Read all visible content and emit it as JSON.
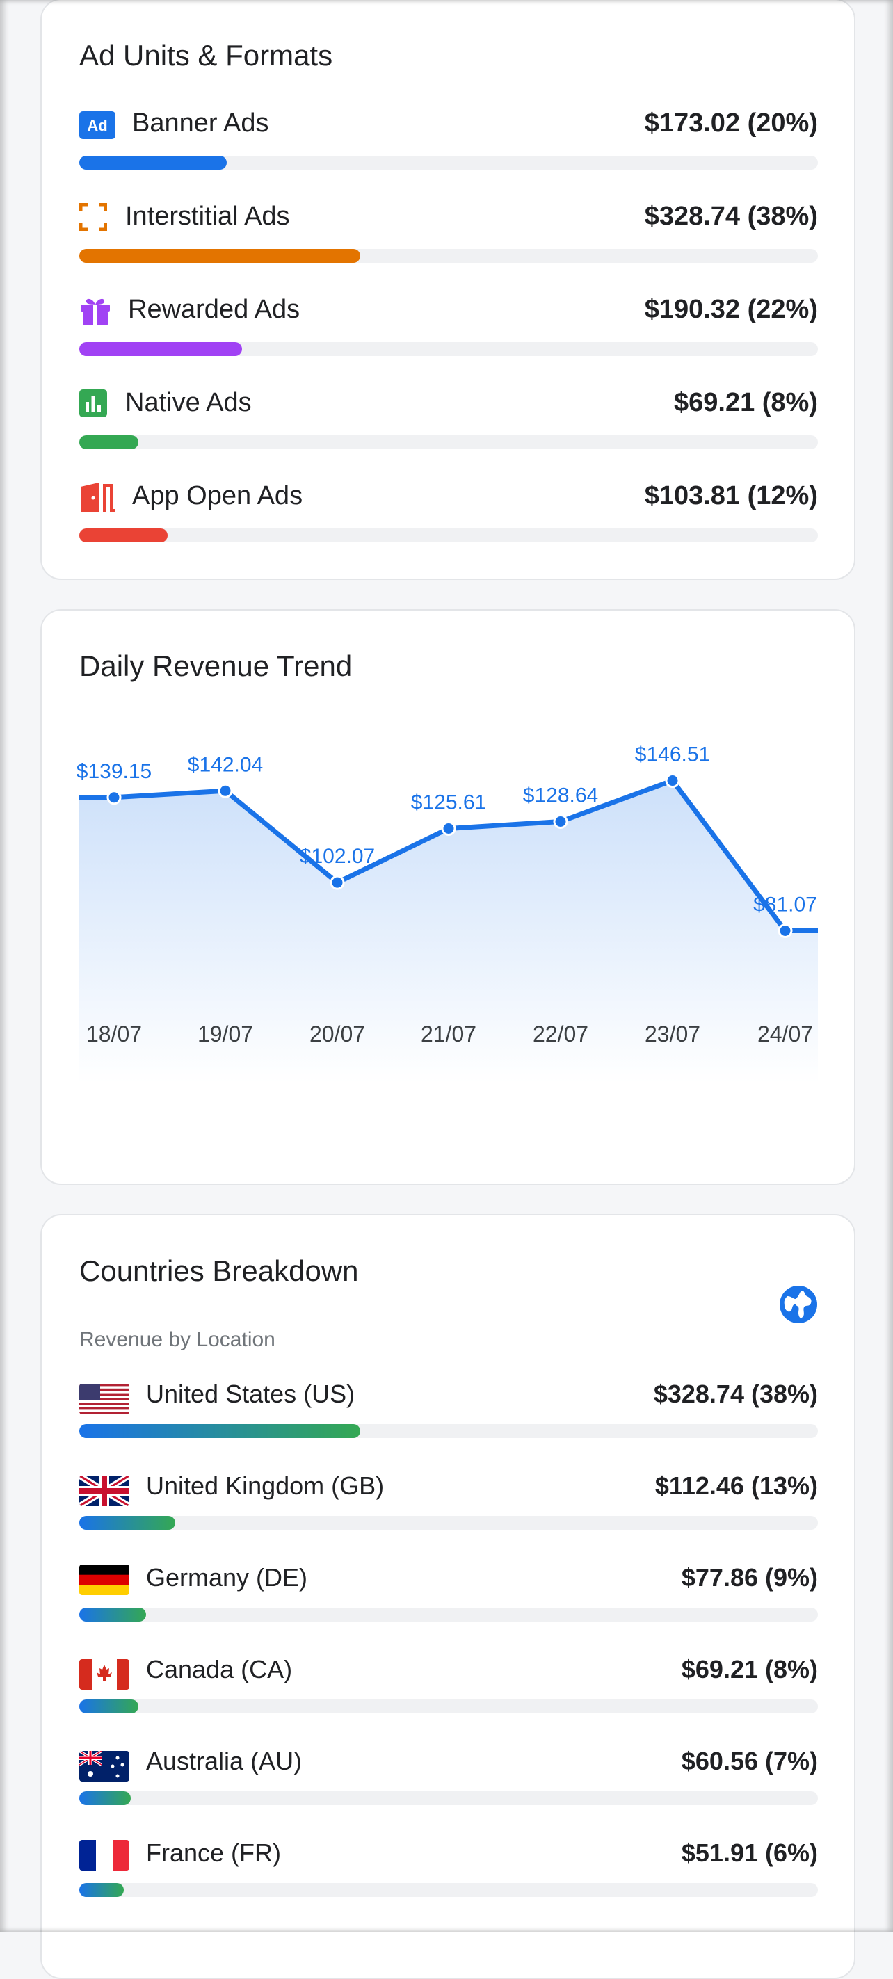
{
  "ad_units": {
    "title": "Ad Units & Formats",
    "items": [
      {
        "label": "Banner Ads",
        "value": "$173.02 (20%)",
        "percent": 20,
        "color": "#1a73e8",
        "icon": "ad-badge-icon"
      },
      {
        "label": "Interstitial Ads",
        "value": "$328.74 (38%)",
        "percent": 38,
        "color": "#e37400",
        "icon": "fullscreen-corners-icon"
      },
      {
        "label": "Rewarded Ads",
        "value": "$190.32 (22%)",
        "percent": 22,
        "color": "#a142f4",
        "icon": "gift-icon"
      },
      {
        "label": "Native Ads",
        "value": "$69.21 (8%)",
        "percent": 8,
        "color": "#34a853",
        "icon": "bar-chart-icon"
      },
      {
        "label": "App Open Ads",
        "value": "$103.81 (12%)",
        "percent": 12,
        "color": "#ea4335",
        "icon": "door-open-icon"
      }
    ]
  },
  "trend": {
    "title": "Daily Revenue Trend"
  },
  "chart_data": {
    "type": "area",
    "title": "Daily Revenue Trend",
    "categories": [
      "18/07",
      "19/07",
      "20/07",
      "21/07",
      "22/07",
      "23/07",
      "24/07"
    ],
    "values": [
      139.15,
      142.04,
      102.07,
      125.61,
      128.64,
      146.51,
      81.07
    ],
    "labels": [
      "$139.15",
      "$142.04",
      "$102.07",
      "$125.61",
      "$128.64",
      "$146.51",
      "$81.07"
    ],
    "color": "#1a73e8",
    "grid": false
  },
  "countries": {
    "title": "Countries Breakdown",
    "subtitle": "Revenue by Location",
    "globe_icon": "globe-icon",
    "items": [
      {
        "label": "United States (US)",
        "value": "$328.74 (38%)",
        "percent": 38,
        "flag": "us"
      },
      {
        "label": "United Kingdom (GB)",
        "value": "$112.46 (13%)",
        "percent": 13,
        "flag": "gb"
      },
      {
        "label": "Germany (DE)",
        "value": "$77.86 (9%)",
        "percent": 9,
        "flag": "de"
      },
      {
        "label": "Canada (CA)",
        "value": "$69.21 (8%)",
        "percent": 8,
        "flag": "ca"
      },
      {
        "label": "Australia (AU)",
        "value": "$60.56 (7%)",
        "percent": 7,
        "flag": "au"
      },
      {
        "label": "France (FR)",
        "value": "$51.91 (6%)",
        "percent": 6,
        "flag": "fr"
      }
    ],
    "gradient_start": "#1a73e8",
    "gradient_end": "#34a853"
  }
}
